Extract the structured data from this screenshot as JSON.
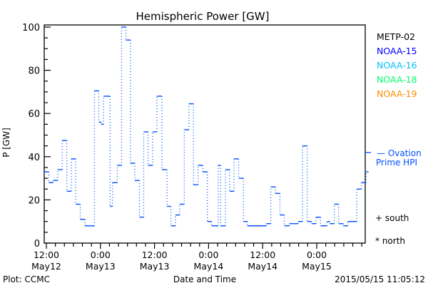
{
  "chart_data": {
    "type": "line",
    "title": "Hemispheric Power [GW]",
    "xlabel": "Date and Time",
    "ylabel": "P [GW]",
    "ylim": [
      0,
      100
    ],
    "yticks": [
      "0",
      "20",
      "40",
      "60",
      "80",
      "100"
    ],
    "x_units": "hours since 2015/05/12 12:00",
    "xlim": [
      -0.5,
      71.5
    ],
    "xticks": [
      {
        "h": 0,
        "time": "12:00",
        "date": "May12"
      },
      {
        "h": 12,
        "time": "0:00",
        "date": "May13"
      },
      {
        "h": 24,
        "time": "12:00",
        "date": "May13"
      },
      {
        "h": 36,
        "time": "0:00",
        "date": "May14"
      },
      {
        "h": 48,
        "time": "12:00",
        "date": "May14"
      },
      {
        "h": 60,
        "time": "0:00",
        "date": "May15"
      }
    ],
    "legend": [
      {
        "label": "METP-02",
        "color": "#000000"
      },
      {
        "label": "NOAA-15",
        "color": "#0000ff"
      },
      {
        "label": "NOAA-16",
        "color": "#00bfff"
      },
      {
        "label": "NOAA-18",
        "color": "#00ff66"
      },
      {
        "label": "NOAA-19",
        "color": "#ff8c00"
      }
    ],
    "legend_position": "right",
    "series": [
      {
        "name": "Ovation Prime HPI",
        "color": "#0050ff",
        "style": "step",
        "x": [
          -0.5,
          0.53,
          1.49,
          2.51,
          3.52,
          4.53,
          5.55,
          6.51,
          7.52,
          8.59,
          10.67,
          11.63,
          12.16,
          12.69,
          14.13,
          14.67,
          15.73,
          16.69,
          17.65,
          18.67,
          19.63,
          20.64,
          21.6,
          22.56,
          23.57,
          24.53,
          25.65,
          26.77,
          27.63,
          28.64,
          29.6,
          30.61,
          31.63,
          32.64,
          33.65,
          34.71,
          35.73,
          36.69,
          38.13,
          38.67,
          39.73,
          40.69,
          41.65,
          42.67,
          43.73,
          44.64,
          48.8,
          49.81,
          50.83,
          51.84,
          52.8,
          53.92,
          55.89,
          56.85,
          57.87,
          58.83,
          59.84,
          60.85,
          62.29,
          62.88,
          63.89,
          64.85,
          65.87,
          66.88,
          68.91,
          69.92,
          70.93
        ],
        "values": [
          33,
          28,
          29,
          34,
          47.5,
          24,
          39,
          18,
          11,
          8,
          70.5,
          56,
          55,
          68,
          17,
          28,
          36,
          100,
          94,
          37,
          29,
          12,
          51.5,
          36,
          51.5,
          68,
          34,
          17,
          8,
          13,
          18,
          52.5,
          64.5,
          27,
          36,
          33,
          10,
          8,
          36,
          8,
          34,
          24,
          39,
          30,
          10,
          8,
          9,
          26,
          23,
          13,
          8,
          9,
          10,
          45,
          10,
          9,
          12,
          8,
          10,
          9,
          18,
          9,
          8,
          10,
          25,
          28,
          33
        ],
        "end_x": 71.5
      }
    ],
    "series_legend": {
      "line1": "— Ovation",
      "line2": "Prime HPI"
    },
    "markers": {
      "south": "+ south",
      "north": "* north"
    },
    "footer": {
      "left": "Plot: CCMC",
      "right": "2015/05/15 11:05:12"
    }
  }
}
